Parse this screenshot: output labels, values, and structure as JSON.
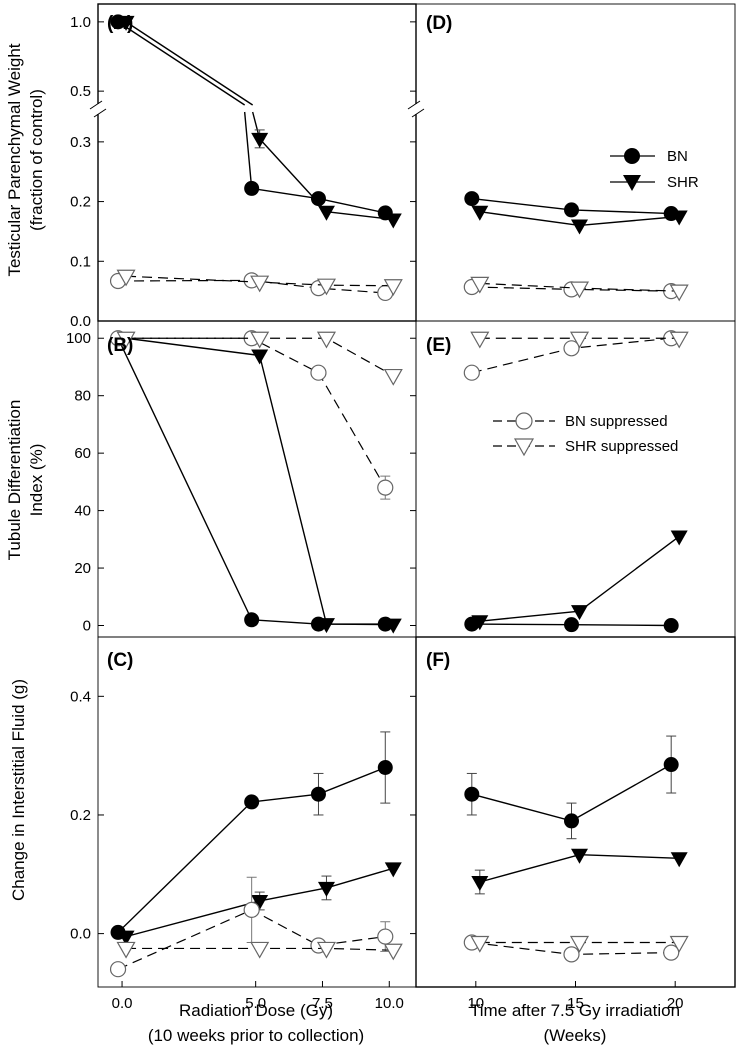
{
  "colors": {
    "line": "#000000",
    "filled": "#000000",
    "open_stroke": "#666666",
    "open_fill": "#ffffff"
  },
  "x_axes": {
    "dose": {
      "ticks": [
        0,
        5,
        7.5,
        10
      ],
      "tick_labels": [
        "0.0",
        "5.0",
        "7.5",
        "10.0"
      ],
      "xlabel_line1": "Radiation Dose  (Gy)",
      "xlabel_line2": "(10 weeks prior to collection)"
    },
    "time": {
      "ticks": [
        10,
        15,
        20
      ],
      "tick_labels": [
        "10",
        "15",
        "20"
      ],
      "xlabel_line1": "Time after 7.5 Gy irradiation",
      "xlabel_line2": "(Weeks)"
    }
  },
  "ylabels": {
    "row1_line1": "Testicular Parenchymal Weight",
    "row1_line2": "(fraction of control)",
    "row2_line1": "Tubule Differentiation",
    "row2_line2": "Index (%)",
    "row3": "Change in Interstitial Fluid (g)"
  },
  "legends": {
    "top": [
      {
        "label": "BN",
        "marker": "circle-filled",
        "style": "solid"
      },
      {
        "label": "SHR",
        "marker": "triangle-filled",
        "style": "solid"
      }
    ],
    "middle": [
      {
        "label": "BN suppressed",
        "marker": "circle-open",
        "style": "dashed"
      },
      {
        "label": "SHR suppressed",
        "marker": "triangle-open",
        "style": "dashed"
      }
    ]
  },
  "chart_data": [
    {
      "panel": "(A)",
      "type": "line",
      "xaxis": "dose",
      "ylim": [
        0,
        1.1
      ],
      "axis_break": [
        0.35,
        0.4
      ],
      "yticks": [
        0,
        0.1,
        0.2,
        0.3,
        0.5,
        1.0
      ],
      "ytick_labels": [
        "0.0",
        "0.1",
        "0.2",
        "0.3",
        "0.5",
        "1.0"
      ],
      "series": [
        {
          "name": "BN",
          "marker": "circle-filled",
          "style": "solid",
          "x": [
            0,
            5,
            7.5,
            10
          ],
          "y": [
            1.0,
            0.222,
            0.205,
            0.181
          ],
          "err": [
            0,
            0,
            0,
            0
          ]
        },
        {
          "name": "SHR",
          "marker": "triangle-filled",
          "style": "solid",
          "x": [
            0,
            5,
            7.5,
            10
          ],
          "y": [
            1.0,
            0.305,
            0.183,
            0.17
          ],
          "err": [
            0,
            0.015,
            0,
            0
          ]
        },
        {
          "name": "BN suppressed",
          "marker": "circle-open",
          "style": "dashed",
          "x": [
            0,
            5,
            7.5,
            10
          ],
          "y": [
            0.067,
            0.068,
            0.055,
            0.047
          ],
          "err": [
            0,
            0,
            0,
            0
          ]
        },
        {
          "name": "SHR suppressed",
          "marker": "triangle-open",
          "style": "dashed",
          "x": [
            0,
            5,
            7.5,
            10
          ],
          "y": [
            0.075,
            0.065,
            0.06,
            0.059
          ],
          "err": [
            0,
            0,
            0,
            0
          ]
        }
      ]
    },
    {
      "panel": "(B)",
      "type": "line",
      "xaxis": "dose",
      "ylim": [
        -4,
        106
      ],
      "yticks": [
        0,
        20,
        40,
        60,
        80,
        100
      ],
      "ytick_labels": [
        "0",
        "20",
        "40",
        "60",
        "80",
        "100"
      ],
      "series": [
        {
          "name": "BN",
          "marker": "circle-filled",
          "style": "solid",
          "x": [
            0,
            5,
            7.5,
            10
          ],
          "y": [
            100,
            2,
            0.5,
            0.5
          ],
          "err": [
            0,
            0,
            0,
            0
          ]
        },
        {
          "name": "SHR",
          "marker": "triangle-filled",
          "style": "solid",
          "x": [
            0,
            5,
            7.5,
            10
          ],
          "y": [
            100,
            94,
            0.5,
            0.3
          ],
          "err": [
            0,
            0,
            0,
            0
          ]
        },
        {
          "name": "BN suppressed",
          "marker": "circle-open",
          "style": "dashed",
          "x": [
            0,
            5,
            7.5,
            10
          ],
          "y": [
            100,
            100,
            88,
            48
          ],
          "err": [
            0,
            0,
            0,
            4
          ]
        },
        {
          "name": "SHR suppressed",
          "marker": "triangle-open",
          "style": "dashed",
          "x": [
            0,
            5,
            7.5,
            10
          ],
          "y": [
            100,
            100,
            100,
            87
          ],
          "err": [
            0,
            0,
            0,
            0
          ]
        }
      ]
    },
    {
      "panel": "(C)",
      "type": "line",
      "xaxis": "dose",
      "ylim": [
        -0.09,
        0.5
      ],
      "yticks": [
        0,
        0.2,
        0.4
      ],
      "ytick_labels": [
        "0.0",
        "0.2",
        "0.4"
      ],
      "series": [
        {
          "name": "BN",
          "marker": "circle-filled",
          "style": "solid",
          "x": [
            0,
            5,
            7.5,
            10
          ],
          "y": [
            0.002,
            0.222,
            0.235,
            0.28
          ],
          "err": [
            0,
            0,
            0.035,
            0.06
          ]
        },
        {
          "name": "SHR",
          "marker": "triangle-filled",
          "style": "solid",
          "x": [
            0,
            5,
            7.5,
            10
          ],
          "y": [
            -0.005,
            0.055,
            0.077,
            0.11
          ],
          "err": [
            0,
            0.015,
            0.02,
            0
          ]
        },
        {
          "name": "BN suppressed",
          "marker": "circle-open",
          "style": "dashed",
          "x": [
            0,
            5,
            7.5,
            10
          ],
          "y": [
            -0.06,
            0.04,
            -0.02,
            -0.005
          ],
          "err": [
            0,
            0.055,
            0,
            0.025
          ]
        },
        {
          "name": "SHR suppressed",
          "marker": "triangle-open",
          "style": "dashed",
          "x": [
            0,
            5,
            7.5,
            10
          ],
          "y": [
            -0.025,
            -0.025,
            -0.025,
            -0.028
          ],
          "err": [
            0,
            0,
            0,
            0
          ]
        }
      ]
    },
    {
      "panel": "(D)",
      "type": "line",
      "xaxis": "time",
      "ylim": [
        0,
        1.1
      ],
      "axis_break": [
        0.35,
        0.4
      ],
      "yticks": [],
      "ytick_labels": [],
      "series": [
        {
          "name": "BN",
          "marker": "circle-filled",
          "style": "solid",
          "x": [
            10,
            15,
            20
          ],
          "y": [
            0.205,
            0.186,
            0.18
          ],
          "err": [
            0,
            0,
            0
          ]
        },
        {
          "name": "SHR",
          "marker": "triangle-filled",
          "style": "solid",
          "x": [
            10,
            15,
            20
          ],
          "y": [
            0.183,
            0.16,
            0.175
          ],
          "err": [
            0,
            0,
            0
          ]
        },
        {
          "name": "BN suppressed",
          "marker": "circle-open",
          "style": "dashed",
          "x": [
            10,
            15,
            20
          ],
          "y": [
            0.057,
            0.053,
            0.05
          ],
          "err": [
            0,
            0,
            0
          ]
        },
        {
          "name": "SHR suppressed",
          "marker": "triangle-open",
          "style": "dashed",
          "x": [
            10,
            15,
            20
          ],
          "y": [
            0.063,
            0.055,
            0.05
          ],
          "err": [
            0,
            0,
            0
          ]
        }
      ]
    },
    {
      "panel": "(E)",
      "type": "line",
      "xaxis": "time",
      "ylim": [
        -4,
        106
      ],
      "yticks": [],
      "ytick_labels": [],
      "series": [
        {
          "name": "BN",
          "marker": "circle-filled",
          "style": "solid",
          "x": [
            10,
            15,
            20
          ],
          "y": [
            0.5,
            0.3,
            0
          ],
          "err": [
            0,
            0,
            0
          ]
        },
        {
          "name": "SHR",
          "marker": "triangle-filled",
          "style": "solid",
          "x": [
            10,
            15,
            20
          ],
          "y": [
            1.5,
            5,
            31
          ],
          "err": [
            0,
            0,
            0
          ]
        },
        {
          "name": "BN suppressed",
          "marker": "circle-open",
          "style": "dashed",
          "x": [
            10,
            15,
            20
          ],
          "y": [
            88,
            96.5,
            100
          ],
          "err": [
            0,
            0,
            0
          ]
        },
        {
          "name": "SHR suppressed",
          "marker": "triangle-open",
          "style": "dashed",
          "x": [
            10,
            15,
            20
          ],
          "y": [
            100,
            100,
            100
          ],
          "err": [
            0,
            0,
            0
          ]
        }
      ]
    },
    {
      "panel": "(F)",
      "type": "line",
      "xaxis": "time",
      "ylim": [
        -0.09,
        0.5
      ],
      "yticks": [],
      "ytick_labels": [],
      "series": [
        {
          "name": "BN",
          "marker": "circle-filled",
          "style": "solid",
          "x": [
            10,
            15,
            20
          ],
          "y": [
            0.235,
            0.19,
            0.285
          ],
          "err": [
            0.035,
            0.03,
            0.048
          ]
        },
        {
          "name": "SHR",
          "marker": "triangle-filled",
          "style": "solid",
          "x": [
            10,
            15,
            20
          ],
          "y": [
            0.087,
            0.133,
            0.127
          ],
          "err": [
            0.02,
            0,
            0
          ]
        },
        {
          "name": "BN suppressed",
          "marker": "circle-open",
          "style": "dashed",
          "x": [
            10,
            15,
            20
          ],
          "y": [
            -0.015,
            -0.035,
            -0.032
          ],
          "err": [
            0,
            0,
            0
          ]
        },
        {
          "name": "SHR suppressed",
          "marker": "triangle-open",
          "style": "dashed",
          "x": [
            10,
            15,
            20
          ],
          "y": [
            -0.015,
            -0.015,
            -0.015
          ],
          "err": [
            0,
            0,
            0
          ]
        }
      ]
    }
  ]
}
